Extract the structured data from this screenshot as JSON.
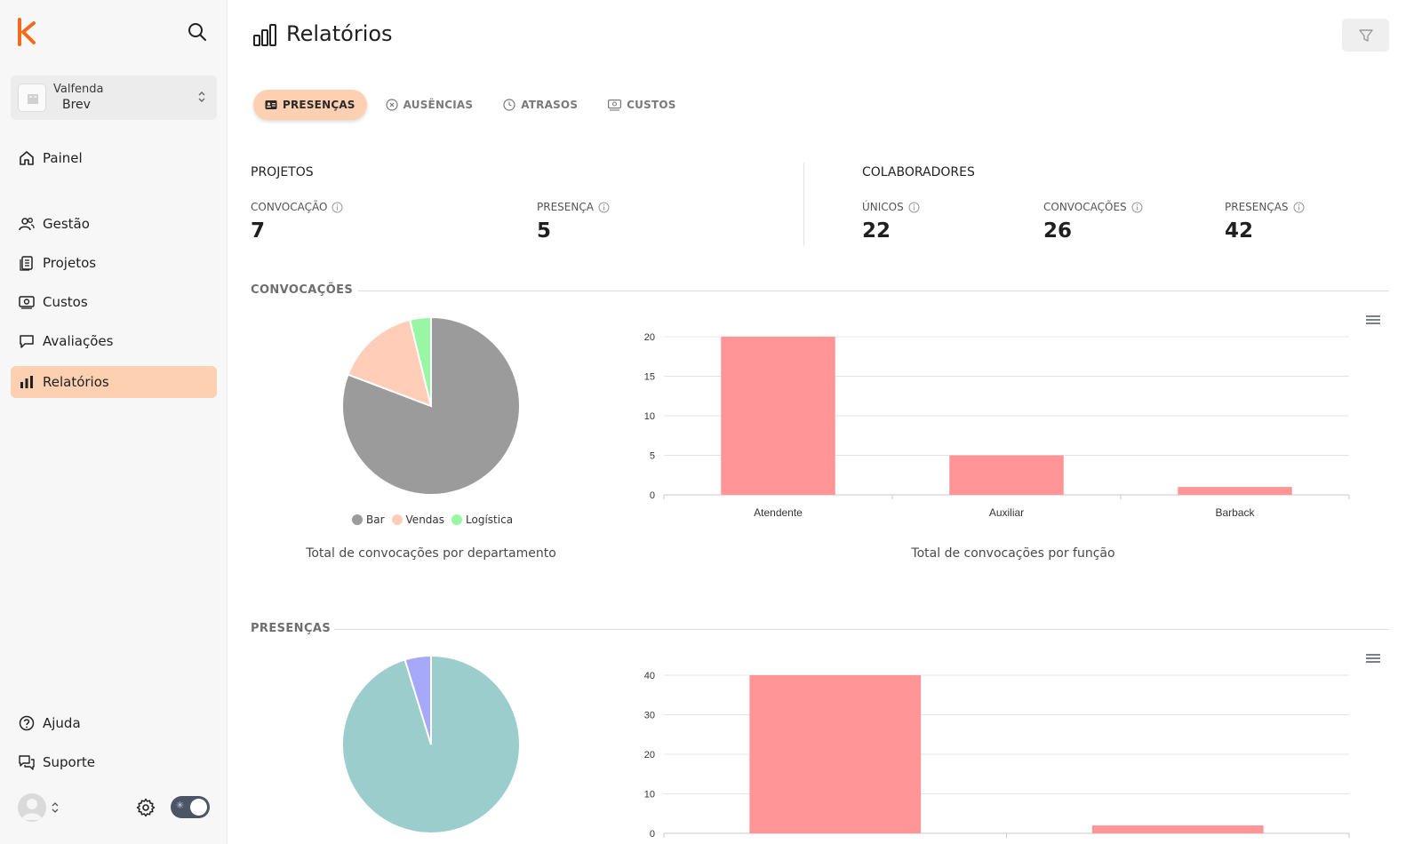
{
  "sidebar": {
    "workspace": {
      "org": "Valfenda",
      "name": "Brev"
    },
    "nav_top": [
      {
        "label": "Painel",
        "icon": "home-icon"
      }
    ],
    "nav": [
      {
        "label": "Gestão",
        "icon": "users-icon"
      },
      {
        "label": "Projetos",
        "icon": "clipboard-icon"
      },
      {
        "label": "Custos",
        "icon": "money-icon"
      },
      {
        "label": "Avaliações",
        "icon": "chat-icon"
      },
      {
        "label": "Relatórios",
        "icon": "bar-chart-icon",
        "active": true
      }
    ],
    "nav_bottom": [
      {
        "label": "Ajuda",
        "icon": "help-icon"
      },
      {
        "label": "Suporte",
        "icon": "support-icon"
      }
    ]
  },
  "header": {
    "title": "Relatórios"
  },
  "tabs": [
    {
      "label": "PRESENÇAS",
      "active": true
    },
    {
      "label": "AUSÊNCIAS"
    },
    {
      "label": "ATRASOS"
    },
    {
      "label": "CUSTOS"
    }
  ],
  "stats": {
    "projects": {
      "title": "PROJETOS",
      "items": [
        {
          "label": "CONVOCAÇÃO",
          "value": "7"
        },
        {
          "label": "PRESENÇA",
          "value": "5"
        }
      ]
    },
    "collaborators": {
      "title": "COLABORADORES",
      "items": [
        {
          "label": "ÚNICOS",
          "value": "22"
        },
        {
          "label": "CONVOCAÇÕES",
          "value": "26"
        },
        {
          "label": "PRESENÇAS",
          "value": "42"
        }
      ]
    }
  },
  "sections": {
    "convocacoes": {
      "title": "CONVOCAÇÕES",
      "pie_caption": "Total de convocações por departamento",
      "bar_caption": "Total de convocações por função"
    },
    "presencas": {
      "title": "PRESENÇAS"
    }
  },
  "colors": {
    "accent": "#f26b1d",
    "active_bg": "#fdd0b1",
    "bar": "#ff9597"
  },
  "chart_data": [
    {
      "type": "pie",
      "categories": [
        "Bar",
        "Vendas",
        "Logística"
      ],
      "values": [
        21,
        4,
        1
      ],
      "colors": [
        "#9b9b9b",
        "#ffcdb8",
        "#98f6a4"
      ],
      "legend_position": "bottom"
    },
    {
      "type": "bar",
      "categories": [
        "Atendente",
        "Auxiliar",
        "Barback"
      ],
      "values": [
        20,
        5,
        1
      ],
      "ylim": [
        0,
        20
      ],
      "yticks": [
        0,
        5,
        10,
        15,
        20
      ],
      "grid": true,
      "color": "#ff9597"
    },
    {
      "type": "pie",
      "values": [
        40,
        2
      ],
      "colors": [
        "#9ccdcd",
        "#a6a8fa"
      ]
    },
    {
      "type": "bar",
      "values": [
        40,
        2
      ],
      "ylim": [
        0,
        40
      ],
      "yticks": [
        0,
        10,
        20,
        30,
        40
      ],
      "grid": true,
      "color": "#ff9597"
    }
  ]
}
